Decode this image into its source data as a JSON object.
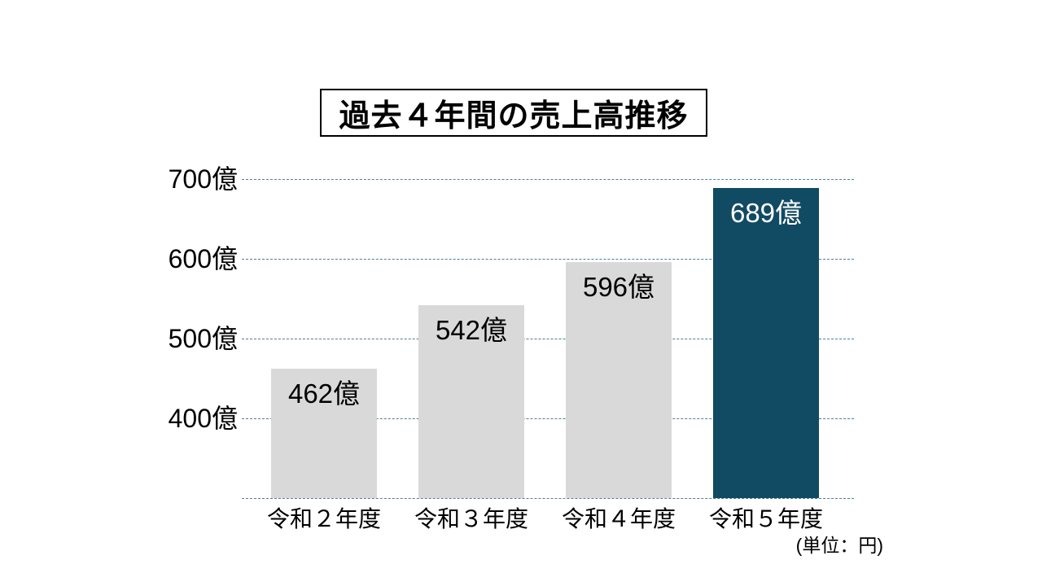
{
  "slide": {
    "title": "過去４年間の売上高推移",
    "unit_note": "(単位：円)"
  },
  "colors": {
    "background": "#ffffff",
    "title_border": "#000000",
    "title_text": "#000000",
    "bar_default": "#d9d9d9",
    "bar_highlight": "#114a63",
    "gridline": "#4e8099",
    "value_label_default": "#000000",
    "value_label_highlight": "#ffffff",
    "axis_text": "#000000"
  },
  "chart_data": {
    "type": "bar",
    "title": "過去４年間の売上高推移",
    "categories": [
      "令和２年度",
      "令和３年度",
      "令和４年度",
      "令和５年度"
    ],
    "values": [
      462,
      542,
      596,
      689
    ],
    "bar_labels": [
      "462億",
      "542億",
      "596億",
      "689億"
    ],
    "highlight_index": 3,
    "highlighted_category": "令和５年度",
    "unit_note": "(単位：円)",
    "xlabel": "",
    "ylabel": "",
    "y_axis": {
      "min": 300,
      "max": 700,
      "tick_interval": 100,
      "tick_values": [
        700,
        600,
        500,
        400
      ],
      "tick_labels": [
        "700億",
        "600億",
        "500億",
        "400億"
      ]
    },
    "gridlines": {
      "visible": true,
      "style": "dashed",
      "values": [
        700,
        600,
        500,
        400,
        300
      ]
    },
    "legend": "none"
  }
}
